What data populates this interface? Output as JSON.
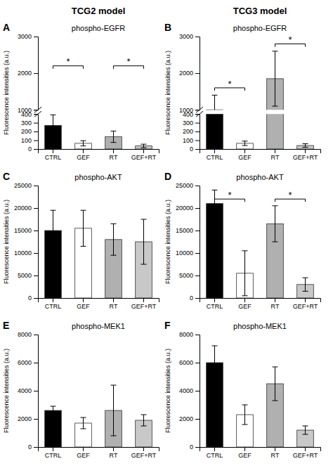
{
  "chart_data": [
    {
      "type": "bar",
      "column_title": "TCG2 model",
      "title": "phospho-EGFR",
      "annotations": [
        "A"
      ],
      "ylabel": "Fluorescence intensities (a.u.)",
      "categories": [
        "CTRL",
        "GEF",
        "RT",
        "GEF+RT"
      ],
      "values": [
        270,
        65,
        140,
        35
      ],
      "errors": [
        120,
        30,
        65,
        20
      ],
      "colors": [
        "black",
        "white",
        "#b0b0b0",
        "#c8c8c8"
      ],
      "ylim": [
        [
          0,
          400
        ],
        [
          1000,
          3000
        ]
      ],
      "yticks": [
        [
          0,
          100,
          200,
          300,
          400
        ],
        [
          1000,
          2000,
          3000
        ]
      ],
      "brackets": [
        {
          "pair": [
            0,
            1
          ],
          "y": 2200,
          "label": "*"
        },
        {
          "pair": [
            2,
            3
          ],
          "y": 2200,
          "label": "*"
        }
      ]
    },
    {
      "type": "bar",
      "column_title": "TCG3 model",
      "title": "phospho-EGFR",
      "annotations": [
        "B"
      ],
      "ylabel": "Fluorescence intensities (a.u.)",
      "categories": [
        "CTRL",
        "GEF",
        "RT",
        "GEF+RT"
      ],
      "values": [
        1000,
        65,
        1850,
        40
      ],
      "errors": [
        400,
        25,
        750,
        20
      ],
      "colors": [
        "black",
        "white",
        "#b0b0b0",
        "#c8c8c8"
      ],
      "ylim": [
        [
          0,
          400
        ],
        [
          1000,
          3000
        ]
      ],
      "yticks": [
        [
          0,
          100,
          200,
          300,
          400
        ],
        [
          1000,
          2000,
          3000
        ]
      ],
      "brackets": [
        {
          "pair": [
            0,
            1
          ],
          "y": 1600,
          "label": "*"
        },
        {
          "pair": [
            2,
            3
          ],
          "y": 2800,
          "label": "*"
        }
      ]
    },
    {
      "type": "bar",
      "title": "phospho-AKT",
      "annotations": [
        "C"
      ],
      "ylabel": "Fluorescence intensities (a.u.)",
      "categories": [
        "CTRL",
        "GEF",
        "RT",
        "GEF+RT"
      ],
      "values": [
        15000,
        15500,
        13000,
        12500
      ],
      "errors": [
        4500,
        4000,
        3500,
        5000
      ],
      "colors": [
        "black",
        "white",
        "#b0b0b0",
        "#c8c8c8"
      ],
      "ylim": [
        0,
        25000
      ],
      "yticks": [
        0,
        5000,
        10000,
        15000,
        20000,
        25000
      ],
      "brackets": []
    },
    {
      "type": "bar",
      "title": "phospho-AKT",
      "annotations": [
        "D"
      ],
      "ylabel": "Fluorescence intensities (a.u.)",
      "categories": [
        "CTRL",
        "GEF",
        "RT",
        "GEF+RT"
      ],
      "values": [
        21000,
        5500,
        16500,
        3000
      ],
      "errors": [
        3000,
        5000,
        4000,
        1500
      ],
      "colors": [
        "black",
        "white",
        "#b0b0b0",
        "#c8c8c8"
      ],
      "ylim": [
        0,
        25000
      ],
      "yticks": [
        0,
        5000,
        10000,
        15000,
        20000,
        25000
      ],
      "brackets": [
        {
          "pair": [
            0,
            1
          ],
          "y": 22000,
          "label": "*"
        },
        {
          "pair": [
            2,
            3
          ],
          "y": 22000,
          "label": "*"
        }
      ]
    },
    {
      "type": "bar",
      "title": "phospho-MEK1",
      "annotations": [
        "E"
      ],
      "ylabel": "Fluorescence intensities (a.u.)",
      "categories": [
        "CTRL",
        "GEF",
        "RT",
        "GEF+RT"
      ],
      "values": [
        2600,
        1700,
        2600,
        1900
      ],
      "errors": [
        300,
        400,
        1800,
        400
      ],
      "colors": [
        "black",
        "white",
        "#b0b0b0",
        "#c8c8c8"
      ],
      "ylim": [
        0,
        8000
      ],
      "yticks": [
        0,
        2000,
        4000,
        6000,
        8000
      ],
      "brackets": []
    },
    {
      "type": "bar",
      "title": "phospho-MEK1",
      "annotations": [
        "F"
      ],
      "ylabel": "Fluorescence intensities (a.u.)",
      "categories": [
        "CTRL",
        "GEF",
        "RT",
        "GEF+RT"
      ],
      "values": [
        6000,
        2300,
        4500,
        1200
      ],
      "errors": [
        1200,
        700,
        1200,
        300
      ],
      "colors": [
        "black",
        "white",
        "#b0b0b0",
        "#c8c8c8"
      ],
      "ylim": [
        0,
        8000
      ],
      "yticks": [
        0,
        2000,
        4000,
        6000,
        8000
      ],
      "brackets": []
    }
  ]
}
